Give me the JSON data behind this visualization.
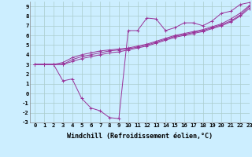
{
  "background_color": "#cceeff",
  "grid_color": "#aacccc",
  "line_color": "#993399",
  "xlabel": "Windchill (Refroidissement éolien,°C)",
  "xlim": [
    -0.5,
    23
  ],
  "ylim": [
    -3,
    9.5
  ],
  "xticks": [
    0,
    1,
    2,
    3,
    4,
    5,
    6,
    7,
    8,
    9,
    10,
    11,
    12,
    13,
    14,
    15,
    16,
    17,
    18,
    19,
    20,
    21,
    22,
    23
  ],
  "yticks": [
    -3,
    -2,
    -1,
    0,
    1,
    2,
    3,
    4,
    5,
    6,
    7,
    8,
    9
  ],
  "series": [
    [
      3.0,
      3.0,
      3.0,
      1.3,
      1.5,
      -0.5,
      -1.5,
      -1.8,
      -2.5,
      -2.6,
      6.5,
      6.5,
      7.8,
      7.7,
      6.5,
      6.8,
      7.3,
      7.3,
      7.0,
      7.5,
      8.3,
      8.5,
      9.2,
      9.4
    ],
    [
      3.0,
      3.0,
      3.0,
      3.0,
      3.5,
      3.8,
      4.0,
      4.2,
      4.4,
      4.5,
      4.6,
      4.8,
      5.0,
      5.3,
      5.6,
      5.9,
      6.1,
      6.3,
      6.5,
      6.8,
      7.1,
      7.5,
      8.1,
      9.0
    ],
    [
      3.0,
      3.0,
      3.0,
      3.2,
      3.7,
      4.0,
      4.2,
      4.4,
      4.5,
      4.6,
      4.7,
      4.9,
      5.1,
      5.4,
      5.7,
      6.0,
      6.2,
      6.4,
      6.6,
      6.9,
      7.2,
      7.7,
      8.3,
      9.1
    ],
    [
      3.0,
      3.0,
      3.0,
      3.0,
      3.3,
      3.6,
      3.8,
      4.0,
      4.2,
      4.3,
      4.5,
      4.7,
      4.9,
      5.2,
      5.5,
      5.8,
      6.0,
      6.2,
      6.4,
      6.7,
      7.0,
      7.4,
      8.0,
      8.8
    ]
  ],
  "tick_fontsize": 5.2,
  "label_fontsize": 6.0,
  "figsize": [
    3.2,
    2.0
  ],
  "dpi": 100
}
